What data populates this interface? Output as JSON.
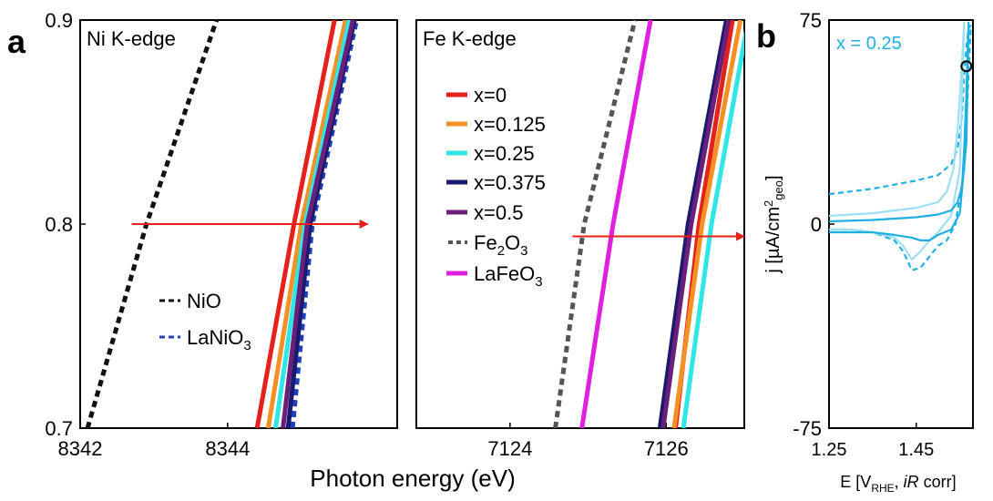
{
  "panel_labels": {
    "a": "a",
    "b": "b"
  },
  "shared_xlabel": "Photon energy (eV)",
  "colors": {
    "x0": "#e5211b",
    "x0125": "#f39224",
    "x025": "#2ee6e6",
    "x0375": "#1a1a6e",
    "x05": "#6a1f7a",
    "LaNiO3": "#1f3fbf",
    "ref_black": "#111111",
    "Fe2O3": "#555555",
    "LaFeO3": "#e020e0",
    "arrow": "#e5211b",
    "panel_b": "#1fb0e0"
  },
  "chart_data": [
    {
      "id": "ni",
      "type": "line",
      "title": "Ni K-edge",
      "xlabel": "",
      "ylabel": "",
      "xlim": [
        8342,
        8346.3
      ],
      "ylim": [
        0.7,
        0.9
      ],
      "xticks": [
        "8342",
        "8344"
      ],
      "xtick_values": [
        8342,
        8344
      ],
      "yticks": [
        "0.7",
        "0.8",
        "0.9"
      ],
      "ytick_values": [
        0.7,
        0.8,
        0.9
      ],
      "legend": [
        "NiO",
        "LaNiO3"
      ],
      "legend_placement": "lower-left",
      "arrow": {
        "from": [
          8342.7,
          0.8
        ],
        "to": [
          8345.9,
          0.8
        ]
      },
      "series": [
        {
          "name": "NiO",
          "color": "#111111",
          "dash": "dashed",
          "x": [
            8342.1,
            8342.9,
            8343.85
          ],
          "y": [
            0.7,
            0.8,
            0.9
          ]
        },
        {
          "name": "LaNiO3",
          "color": "#1f3fbf",
          "dash": "dashed",
          "x": [
            8344.88,
            8345.15,
            8345.75
          ],
          "y": [
            0.7,
            0.8,
            0.9
          ]
        },
        {
          "name": "x=0",
          "color": "#e5211b",
          "dash": "solid",
          "x": [
            8344.4,
            8344.9,
            8345.45
          ],
          "y": [
            0.7,
            0.8,
            0.9
          ]
        },
        {
          "name": "x=0.125",
          "color": "#f39224",
          "dash": "solid",
          "x": [
            8344.55,
            8345.0,
            8345.6
          ],
          "y": [
            0.7,
            0.8,
            0.9
          ]
        },
        {
          "name": "x=0.25",
          "color": "#2ee6e6",
          "dash": "solid",
          "x": [
            8344.65,
            8345.05,
            8345.65
          ],
          "y": [
            0.7,
            0.8,
            0.9
          ]
        },
        {
          "name": "x=0.375",
          "color": "#1a1a6e",
          "dash": "solid",
          "x": [
            8344.82,
            8345.12,
            8345.72
          ],
          "y": [
            0.7,
            0.8,
            0.9
          ]
        },
        {
          "name": "x=0.5",
          "color": "#6a1f7a",
          "dash": "solid",
          "x": [
            8344.75,
            8345.08,
            8345.7
          ],
          "y": [
            0.7,
            0.8,
            0.9
          ]
        }
      ]
    },
    {
      "id": "fe",
      "type": "line",
      "title": "Fe K-edge",
      "xlabel": "",
      "ylabel": "",
      "xlim": [
        7122.8,
        7127.0
      ],
      "ylim": [
        0.7,
        0.9
      ],
      "xticks": [
        "7124",
        "7126"
      ],
      "xtick_values": [
        7124,
        7126
      ],
      "yticks": [],
      "legend": [
        "x=0",
        "x=0.125",
        "x=0.25",
        "x=0.375",
        "x=0.5",
        "Fe2O3",
        "LaFeO3"
      ],
      "legend_placement": "left",
      "arrow": {
        "from": [
          7124.8,
          0.794
        ],
        "to": [
          7127.0,
          0.794
        ]
      },
      "series": [
        {
          "name": "x=0",
          "color": "#e5211b",
          "dash": "solid",
          "x": [
            7126.12,
            7126.42,
            7126.85
          ],
          "y": [
            0.7,
            0.8,
            0.9
          ]
        },
        {
          "name": "x=0.125",
          "color": "#f39224",
          "dash": "solid",
          "x": [
            7126.1,
            7126.46,
            7126.95
          ],
          "y": [
            0.7,
            0.8,
            0.9
          ]
        },
        {
          "name": "x=0.25",
          "color": "#2ee6e6",
          "dash": "solid",
          "x": [
            7126.22,
            7126.58,
            7127.05
          ],
          "y": [
            0.7,
            0.8,
            0.9
          ]
        },
        {
          "name": "x=0.375",
          "color": "#1a1a6e",
          "dash": "solid",
          "x": [
            7125.92,
            7126.28,
            7126.77
          ],
          "y": [
            0.7,
            0.8,
            0.9
          ]
        },
        {
          "name": "x=0.5",
          "color": "#6a1f7a",
          "dash": "solid",
          "x": [
            7125.96,
            7126.32,
            7126.8
          ],
          "y": [
            0.7,
            0.8,
            0.9
          ]
        },
        {
          "name": "Fe2O3",
          "color": "#555555",
          "dash": "dashed",
          "x": [
            7124.58,
            7124.95,
            7125.6
          ],
          "y": [
            0.7,
            0.8,
            0.9
          ]
        },
        {
          "name": "LaFeO3",
          "color": "#e020e0",
          "dash": "solid",
          "x": [
            7124.92,
            7125.32,
            7125.8
          ],
          "y": [
            0.7,
            0.8,
            0.9
          ]
        }
      ]
    },
    {
      "id": "cv",
      "type": "line",
      "title": "x = 0.25",
      "xlabel": "E [V_RHE, iR corr]",
      "ylabel": "j [µA/cm²_geo]",
      "xlim": [
        1.25,
        1.58
      ],
      "ylim": [
        -75,
        75
      ],
      "xticks": [
        "1.25",
        "1.45"
      ],
      "xtick_values": [
        1.25,
        1.45
      ],
      "yticks": [
        "75",
        "0",
        "-75"
      ],
      "ytick_values": [
        75,
        0,
        -75
      ],
      "legend": [],
      "marker": {
        "x": 1.565,
        "y": 58
      },
      "series": [
        {
          "name": "",
          "color": "#1fb0e0",
          "dash": "dashed",
          "x": [
            1.25,
            1.35,
            1.45,
            1.5,
            1.53,
            1.545,
            1.555,
            1.56,
            1.565,
            1.57,
            1.575,
            1.56,
            1.54,
            1.52,
            1.5,
            1.48,
            1.46,
            1.44,
            1.42,
            1.4,
            1.35,
            1.3,
            1.25
          ],
          "y": [
            11,
            13,
            16,
            18,
            22,
            28,
            40,
            55,
            65,
            72,
            73,
            20,
            0,
            -6,
            -8,
            -12,
            -16,
            -17,
            -10,
            -6,
            -3,
            -2,
            -2
          ]
        },
        {
          "name": "",
          "color": "#9fdff5",
          "dash": "solid",
          "x": [
            1.25,
            1.35,
            1.45,
            1.5,
            1.52,
            1.535,
            1.545,
            1.555,
            1.56,
            1.55,
            1.53,
            1.5,
            1.48,
            1.46,
            1.44,
            1.42,
            1.4,
            1.35,
            1.3,
            1.25
          ],
          "y": [
            3,
            4,
            6,
            8,
            12,
            20,
            35,
            60,
            74,
            20,
            3,
            -3,
            -6,
            -10,
            -13,
            -8,
            -5,
            -3,
            -2,
            -2
          ]
        },
        {
          "name": "",
          "color": "#1fb0e0",
          "dash": "solid",
          "x": [
            1.25,
            1.35,
            1.45,
            1.5,
            1.53,
            1.545,
            1.555,
            1.56,
            1.565,
            1.57,
            1.565,
            1.55,
            1.53,
            1.5,
            1.48,
            1.46,
            1.44,
            1.4,
            1.35,
            1.3,
            1.25
          ],
          "y": [
            1,
            1.5,
            2.5,
            3.5,
            5,
            8,
            14,
            28,
            48,
            74,
            30,
            4,
            -2,
            -4,
            -6,
            -6,
            -5,
            -4,
            -3,
            -3,
            -3
          ]
        }
      ]
    }
  ]
}
